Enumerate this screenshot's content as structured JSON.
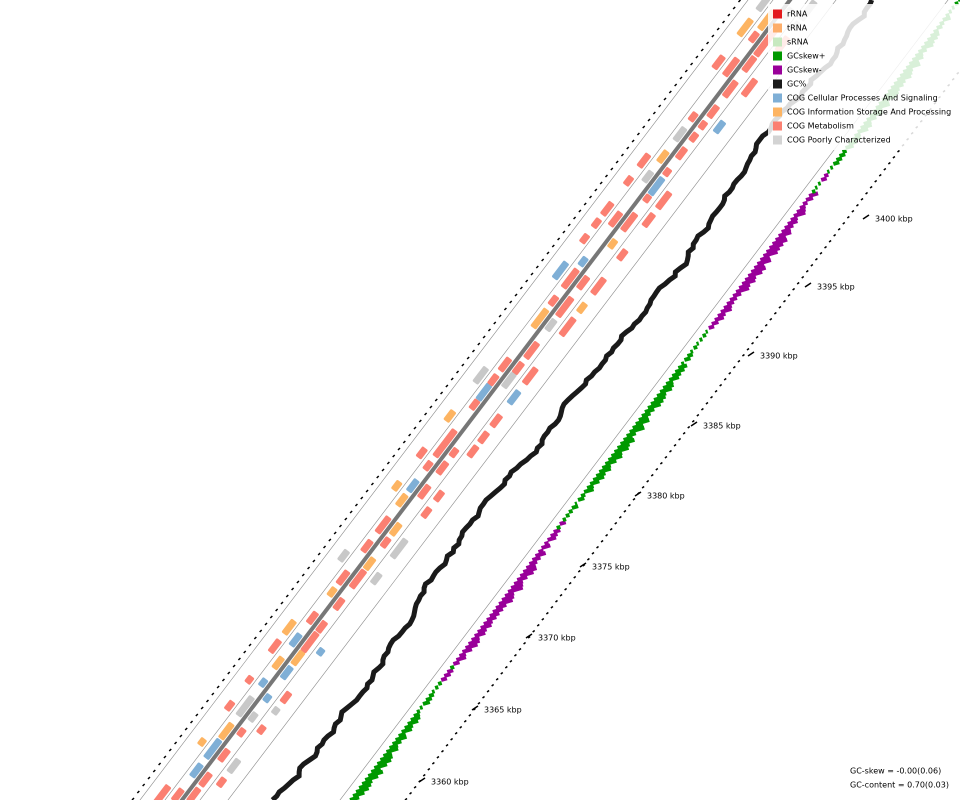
{
  "legend": {
    "items": [
      {
        "label": "rRNA",
        "color": "#e31a1c"
      },
      {
        "label": "tRNA",
        "color": "#fdae6b"
      },
      {
        "label": "sRNA",
        "color": "#c7e9c0"
      },
      {
        "label": "GCskew+",
        "color": "#009900"
      },
      {
        "label": "GCskew-",
        "color": "#990099"
      },
      {
        "label": "GC%",
        "color": "#1a1a1a"
      },
      {
        "label": "COG Cellular Processes And Signaling",
        "color": "#7fafd6"
      },
      {
        "label": "COG Information Storage And Processing",
        "color": "#fdb462"
      },
      {
        "label": "COG Metabolism",
        "color": "#fb8072"
      },
      {
        "label": "COG Poorly Characterized",
        "color": "#d3d3d3"
      }
    ]
  },
  "scale": {
    "labels": [
      "3360 kbp",
      "3365 kbp",
      "3370 kbp",
      "3375 kbp",
      "3380 kbp",
      "3385 kbp",
      "3390 kbp",
      "3395 kbp",
      "3400 kbp"
    ]
  },
  "stats": {
    "gc_skew": "GC-skew = -0.00(0.06)",
    "gc_content": "GC-content = 0.70(0.03)"
  }
}
